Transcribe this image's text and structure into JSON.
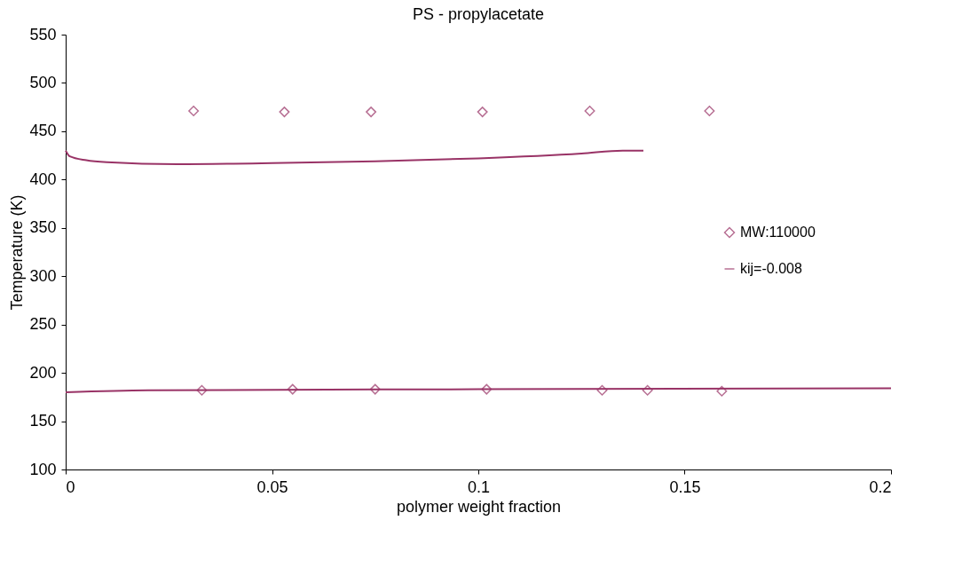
{
  "chart_data": {
    "type": "scatter",
    "title": "PS - propylacetate",
    "xlabel": "polymer weight fraction",
    "ylabel": "Temperature (K)",
    "xlim": [
      0,
      0.2
    ],
    "xticks": [
      0,
      0.05,
      0.1,
      0.15,
      0.2
    ],
    "ylim": [
      100,
      550
    ],
    "yticks": [
      100,
      150,
      200,
      250,
      300,
      350,
      400,
      450,
      500,
      550
    ],
    "grid": false,
    "legend": "right",
    "line_style": "solid",
    "series": [
      {
        "name": "MW:110000",
        "marker": "diamond",
        "color": "#993366",
        "x": [
          0.031,
          0.053,
          0.074,
          0.101,
          0.127,
          0.156,
          0.033,
          0.055,
          0.075,
          0.102,
          0.13,
          0.141,
          0.159
        ],
        "values": [
          471,
          470,
          470,
          470,
          471,
          471,
          182,
          183,
          183,
          183,
          182,
          182,
          181
        ]
      },
      {
        "name": "kij=-0.008",
        "type": "line",
        "color": "#993366",
        "x": [
          0,
          0.001,
          0.005,
          0.01,
          0.027,
          0.05,
          0.075,
          0.1,
          0.125,
          0.135,
          0.14
        ],
        "values": [
          430,
          424,
          420,
          418,
          416,
          417,
          419,
          422,
          427,
          430,
          430
        ]
      },
      {
        "type": "line",
        "color": "#993366",
        "x": [
          0,
          0.02,
          0.1,
          0.2
        ],
        "values": [
          180,
          182,
          183,
          184
        ]
      }
    ]
  }
}
